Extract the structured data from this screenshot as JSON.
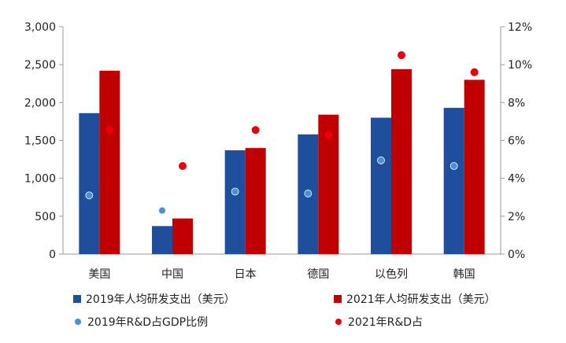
{
  "chart_data": {
    "type": "bar",
    "categories": [
      "美国",
      "中国",
      "日本",
      "德国",
      "以色列",
      "韩国"
    ],
    "series": [
      {
        "name": "2019年人均研发支出（美元）",
        "kind": "bar",
        "axis": "left",
        "color": "#1f4e9c",
        "values": [
          1860,
          370,
          1370,
          1580,
          1800,
          1930
        ]
      },
      {
        "name": "2021年人均研发支出（美元）",
        "kind": "bar",
        "axis": "left",
        "color": "#c00000",
        "values": [
          2420,
          470,
          1400,
          1840,
          2440,
          2300
        ]
      },
      {
        "name": "2019年R&D占GDP比例",
        "kind": "scatter",
        "axis": "right",
        "color": "#4a90d9",
        "values": [
          3.1,
          2.3,
          3.3,
          3.2,
          4.95,
          4.65
        ]
      },
      {
        "name": "2021年R&D占",
        "kind": "scatter",
        "axis": "right",
        "color": "#e8000b",
        "values": [
          6.55,
          4.65,
          6.55,
          6.3,
          10.5,
          9.6
        ]
      }
    ],
    "y_left": {
      "range": [
        0,
        3000
      ],
      "ticks": [
        "0",
        "500",
        "1,000",
        "1,500",
        "2,000",
        "2,500",
        "3,000"
      ]
    },
    "y_right": {
      "range": [
        0,
        12
      ],
      "ticks": [
        "0%",
        "2%",
        "4%",
        "6%",
        "8%",
        "10%",
        "12%"
      ]
    },
    "grid": false,
    "legend_position": "bottom"
  }
}
